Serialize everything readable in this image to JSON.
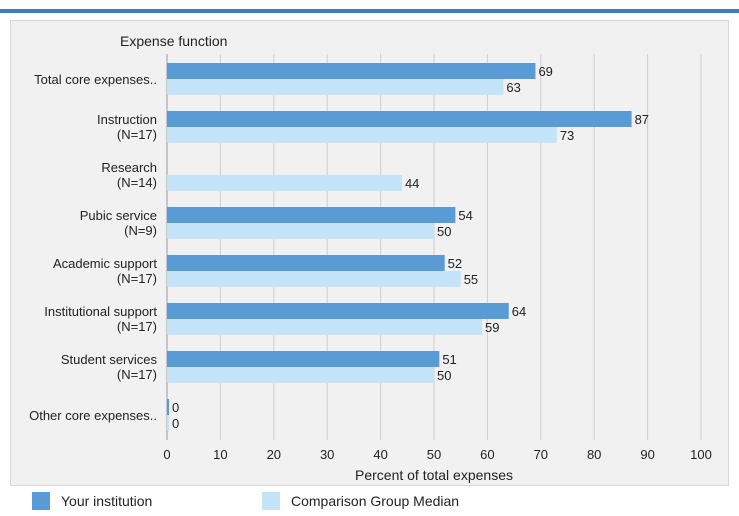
{
  "chart_data": {
    "type": "bar",
    "orientation": "horizontal",
    "category_header": "Expense function",
    "categories": [
      [
        "Total core expenses.."
      ],
      [
        "Instruction",
        "(N=17)"
      ],
      [
        "Research",
        "(N=14)"
      ],
      [
        "Pubic service",
        "(N=9)"
      ],
      [
        "Academic support",
        "(N=17)"
      ],
      [
        "Institutional support",
        "(N=17)"
      ],
      [
        "Student services",
        "(N=17)"
      ],
      [
        "Other core expenses.."
      ]
    ],
    "series": [
      {
        "name": "Your institution",
        "color": "#5b9bd5",
        "values": [
          69,
          87,
          null,
          54,
          52,
          64,
          51,
          0
        ]
      },
      {
        "name": "Comparison Group Median",
        "color": "#c5e3f7",
        "values": [
          63,
          73,
          44,
          50,
          55,
          59,
          50,
          0
        ]
      }
    ],
    "xlabel": "Percent of total expenses",
    "xlim": [
      0,
      100
    ],
    "xticks": [
      0,
      10,
      20,
      30,
      40,
      50,
      60,
      70,
      80,
      90,
      100
    ],
    "grid": true,
    "legend_position": "bottom"
  }
}
